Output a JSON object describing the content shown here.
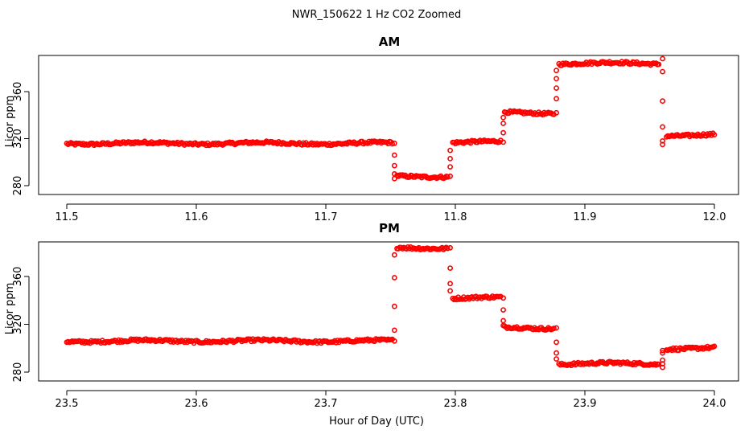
{
  "figure": {
    "title": "NWR_150622  1 Hz CO2 Zoomed",
    "xlabel": "Hour of Day (UTC)"
  },
  "colors": {
    "points": "#ff0000",
    "axes": "#000000"
  },
  "chart_data": [
    {
      "type": "scatter",
      "title": "AM",
      "xlabel": "",
      "ylabel": "Licor ppm",
      "xlim": [
        11.5,
        12.0
      ],
      "ylim": [
        280,
        390
      ],
      "xticks": [
        "11.5",
        "11.6",
        "11.7",
        "11.8",
        "11.9",
        "12.0"
      ],
      "yticks": [
        "280",
        "320",
        "360"
      ],
      "grid": false,
      "marker": "open-circle",
      "segments": [
        {
          "x": [
            11.5,
            11.752
          ],
          "y": 316
        },
        {
          "x": [
            11.755,
            11.795
          ],
          "y": 288
        },
        {
          "x": [
            11.798,
            11.836
          ],
          "y": 317
        },
        {
          "x": [
            11.838,
            11.877
          ],
          "y": 342
        },
        {
          "x": [
            11.88,
            11.958
          ],
          "y": 384
        },
        {
          "x": [
            11.963,
            12.0
          ],
          "y": 323
        }
      ],
      "transitions": [
        {
          "x": 11.753,
          "y": [
            316,
            306,
            297,
            290,
            286
          ]
        },
        {
          "x": 11.796,
          "y": [
            288,
            296,
            303,
            310
          ]
        },
        {
          "x": 11.837,
          "y": [
            317,
            325,
            333,
            338
          ]
        },
        {
          "x": 11.878,
          "y": [
            342,
            354,
            363,
            371,
            378
          ]
        },
        {
          "x": 11.96,
          "y": [
            388,
            377,
            352,
            330,
            318,
            315
          ]
        }
      ]
    },
    {
      "type": "scatter",
      "title": "PM",
      "xlabel": "",
      "ylabel": "Licor ppm",
      "xlim": [
        23.5,
        24.0
      ],
      "ylim": [
        280,
        390
      ],
      "xticks": [
        "23.5",
        "23.6",
        "23.7",
        "23.8",
        "23.9",
        "24.0"
      ],
      "yticks": [
        "280",
        "320",
        "360"
      ],
      "grid": false,
      "marker": "open-circle",
      "segments": [
        {
          "x": [
            23.5,
            23.752
          ],
          "y": 306
        },
        {
          "x": [
            23.755,
            23.795
          ],
          "y": 384
        },
        {
          "x": [
            23.798,
            23.836
          ],
          "y": 342
        },
        {
          "x": [
            23.838,
            23.877
          ],
          "y": 317
        },
        {
          "x": [
            23.88,
            23.958
          ],
          "y": 287
        },
        {
          "x": [
            23.963,
            24.0
          ],
          "y": 300
        }
      ],
      "transitions": [
        {
          "x": 23.753,
          "y": [
            306,
            315,
            335,
            359,
            378
          ]
        },
        {
          "x": 23.796,
          "y": [
            384,
            367,
            354,
            348
          ]
        },
        {
          "x": 23.837,
          "y": [
            342,
            332,
            323,
            319
          ]
        },
        {
          "x": 23.878,
          "y": [
            317,
            305,
            296,
            291
          ]
        },
        {
          "x": 23.96,
          "y": [
            287,
            284,
            290,
            296,
            298
          ]
        }
      ]
    }
  ]
}
